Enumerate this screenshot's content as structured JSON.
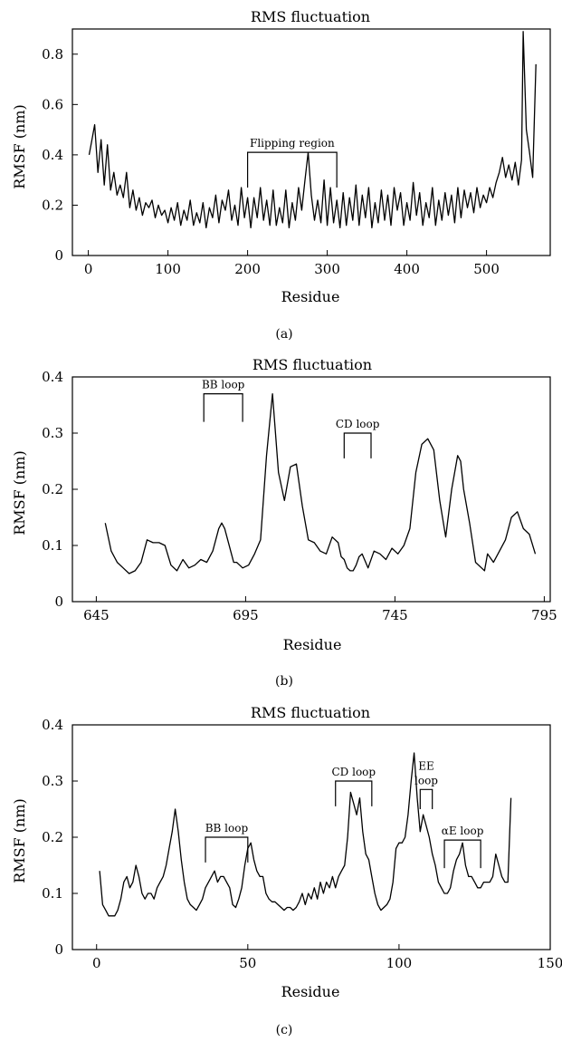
{
  "chart_data": [
    {
      "type": "line",
      "panel_label": "(a)",
      "title": "RMS fluctuation",
      "xlabel": "Residue",
      "ylabel": "RMSF (nm)",
      "xlim": [
        -20,
        580
      ],
      "ylim": [
        0,
        0.9
      ],
      "xticks": [
        0,
        100,
        200,
        300,
        400,
        500
      ],
      "xtick_labels": [
        "0",
        "100",
        "200",
        "300",
        "400",
        "500"
      ],
      "yticks": [
        0,
        0.2,
        0.4,
        0.6,
        0.8
      ],
      "ytick_labels": [
        "0",
        "0.2",
        "0.4",
        "0.6",
        "0.8"
      ],
      "grid": false,
      "annotations": [
        {
          "text": "Flipping region",
          "x_start": 200,
          "x_end": 312,
          "y_bottom": 0.27,
          "y_top": 0.41
        }
      ],
      "series": [
        {
          "x": [
            1,
            4,
            8,
            12,
            16,
            20,
            24,
            28,
            32,
            36,
            40,
            44,
            48,
            52,
            56,
            60,
            64,
            68,
            72,
            76,
            80,
            84,
            88,
            92,
            96,
            100,
            104,
            108,
            112,
            116,
            120,
            124,
            128,
            132,
            136,
            140,
            144,
            148,
            152,
            156,
            160,
            164,
            168,
            172,
            176,
            180,
            184,
            188,
            192,
            196,
            200,
            204,
            208,
            212,
            216,
            220,
            224,
            228,
            232,
            236,
            240,
            244,
            248,
            252,
            256,
            260,
            264,
            268,
            272,
            276,
            280,
            284,
            288,
            292,
            296,
            300,
            304,
            308,
            312,
            316,
            320,
            324,
            328,
            332,
            336,
            340,
            344,
            348,
            352,
            356,
            360,
            364,
            368,
            372,
            376,
            380,
            384,
            388,
            392,
            396,
            400,
            404,
            408,
            412,
            416,
            420,
            424,
            428,
            432,
            436,
            440,
            444,
            448,
            452,
            456,
            460,
            464,
            468,
            472,
            476,
            480,
            484,
            488,
            492,
            496,
            500,
            504,
            508,
            512,
            516,
            520,
            524,
            528,
            532,
            536,
            540,
            544,
            546,
            550,
            554,
            558,
            562
          ],
          "y": [
            0.4,
            0.45,
            0.52,
            0.33,
            0.46,
            0.28,
            0.44,
            0.26,
            0.33,
            0.24,
            0.28,
            0.23,
            0.33,
            0.19,
            0.26,
            0.18,
            0.23,
            0.16,
            0.21,
            0.19,
            0.22,
            0.15,
            0.2,
            0.16,
            0.18,
            0.13,
            0.19,
            0.14,
            0.21,
            0.12,
            0.18,
            0.14,
            0.22,
            0.12,
            0.17,
            0.13,
            0.21,
            0.11,
            0.19,
            0.15,
            0.24,
            0.13,
            0.22,
            0.18,
            0.26,
            0.14,
            0.2,
            0.12,
            0.27,
            0.15,
            0.23,
            0.11,
            0.23,
            0.15,
            0.27,
            0.14,
            0.22,
            0.12,
            0.26,
            0.12,
            0.19,
            0.13,
            0.26,
            0.11,
            0.21,
            0.14,
            0.27,
            0.18,
            0.3,
            0.41,
            0.24,
            0.14,
            0.22,
            0.13,
            0.3,
            0.12,
            0.27,
            0.13,
            0.22,
            0.11,
            0.25,
            0.12,
            0.23,
            0.14,
            0.28,
            0.12,
            0.24,
            0.15,
            0.27,
            0.11,
            0.21,
            0.13,
            0.26,
            0.14,
            0.24,
            0.12,
            0.27,
            0.18,
            0.25,
            0.12,
            0.21,
            0.14,
            0.29,
            0.16,
            0.25,
            0.12,
            0.21,
            0.15,
            0.27,
            0.12,
            0.22,
            0.14,
            0.25,
            0.16,
            0.24,
            0.13,
            0.27,
            0.15,
            0.26,
            0.19,
            0.25,
            0.17,
            0.27,
            0.19,
            0.24,
            0.21,
            0.27,
            0.23,
            0.29,
            0.33,
            0.39,
            0.31,
            0.36,
            0.3,
            0.37,
            0.28,
            0.38,
            0.89,
            0.5,
            0.41,
            0.31,
            0.76
          ]
        }
      ]
    },
    {
      "type": "line",
      "panel_label": "(b)",
      "title": "RMS fluctuation",
      "xlabel": "Residue",
      "ylabel": "RMSF (nm)",
      "xlim": [
        637,
        797
      ],
      "ylim": [
        0,
        0.4
      ],
      "xticks": [
        645,
        695,
        745,
        795
      ],
      "xtick_labels": [
        "645",
        "695",
        "745",
        "795"
      ],
      "yticks": [
        0,
        0.1,
        0.2,
        0.3,
        0.4
      ],
      "ytick_labels": [
        "0",
        "0.1",
        "0.2",
        "0.3",
        "0.4"
      ],
      "grid": false,
      "annotations": [
        {
          "text": "BB loop",
          "x_start": 681,
          "x_end": 694,
          "y_bottom": 0.32,
          "y_top": 0.37
        },
        {
          "text": "CD loop",
          "x_start": 728,
          "x_end": 737,
          "y_bottom": 0.255,
          "y_top": 0.3
        }
      ],
      "series": [
        {
          "x": [
            648,
            650,
            652,
            654,
            656,
            658,
            660,
            662,
            664,
            666,
            668,
            670,
            672,
            674,
            676,
            678,
            680,
            682,
            684,
            686,
            687,
            688,
            690,
            691,
            692,
            693,
            694,
            696,
            698,
            700,
            702,
            704,
            706,
            708,
            710,
            712,
            714,
            716,
            718,
            720,
            722,
            724,
            726,
            727,
            728,
            729,
            730,
            731,
            732,
            733,
            734,
            736,
            738,
            740,
            742,
            744,
            746,
            748,
            750,
            752,
            754,
            756,
            758,
            760,
            762,
            764,
            766,
            767,
            768,
            770,
            772,
            774,
            775,
            776,
            778,
            780,
            782,
            784,
            786,
            788,
            790,
            792
          ],
          "y": [
            0.14,
            0.09,
            0.07,
            0.06,
            0.05,
            0.055,
            0.07,
            0.11,
            0.105,
            0.105,
            0.1,
            0.065,
            0.055,
            0.075,
            0.06,
            0.065,
            0.075,
            0.07,
            0.09,
            0.13,
            0.14,
            0.13,
            0.09,
            0.07,
            0.07,
            0.065,
            0.06,
            0.065,
            0.085,
            0.11,
            0.26,
            0.37,
            0.23,
            0.18,
            0.24,
            0.245,
            0.17,
            0.11,
            0.105,
            0.09,
            0.085,
            0.115,
            0.105,
            0.08,
            0.075,
            0.06,
            0.055,
            0.055,
            0.065,
            0.08,
            0.085,
            0.06,
            0.09,
            0.085,
            0.075,
            0.095,
            0.085,
            0.1,
            0.13,
            0.23,
            0.28,
            0.29,
            0.27,
            0.18,
            0.115,
            0.2,
            0.26,
            0.25,
            0.2,
            0.14,
            0.07,
            0.06,
            0.055,
            0.085,
            0.07,
            0.09,
            0.11,
            0.15,
            0.16,
            0.13,
            0.12,
            0.085
          ]
        }
      ]
    },
    {
      "type": "line",
      "panel_label": "(c)",
      "title": "RMS fluctuation",
      "xlabel": "Residue",
      "ylabel": "RMSF (nm)",
      "xlim": [
        -8,
        150
      ],
      "ylim": [
        0,
        0.4
      ],
      "xticks": [
        0,
        50,
        100,
        150
      ],
      "xtick_labels": [
        "0",
        "50",
        "100",
        "150"
      ],
      "yticks": [
        0,
        0.1,
        0.2,
        0.3,
        0.4
      ],
      "ytick_labels": [
        "0",
        "0.1",
        "0.2",
        "0.3",
        "0.4"
      ],
      "grid": false,
      "annotations": [
        {
          "text": "BB loop",
          "x_start": 36,
          "x_end": 50,
          "y_bottom": 0.155,
          "y_top": 0.2
        },
        {
          "text": "CD loop",
          "x_start": 79,
          "x_end": 91,
          "y_bottom": 0.255,
          "y_top": 0.3
        },
        {
          "text": "EE loop",
          "x_start": 107,
          "x_end": 111,
          "y_bottom": 0.25,
          "y_top": 0.285
        },
        {
          "text": "αE loop",
          "x_start": 115,
          "x_end": 127,
          "y_bottom": 0.145,
          "y_top": 0.195
        }
      ],
      "series": [
        {
          "x": [
            1,
            2,
            3,
            4,
            5,
            6,
            7,
            8,
            9,
            10,
            11,
            12,
            13,
            14,
            15,
            16,
            17,
            18,
            19,
            20,
            21,
            22,
            23,
            24,
            25,
            26,
            27,
            28,
            29,
            30,
            31,
            32,
            33,
            34,
            35,
            36,
            37,
            38,
            39,
            40,
            41,
            42,
            43,
            44,
            45,
            46,
            47,
            48,
            49,
            50,
            51,
            52,
            53,
            54,
            55,
            56,
            57,
            58,
            59,
            60,
            61,
            62,
            63,
            64,
            65,
            66,
            67,
            68,
            69,
            70,
            71,
            72,
            73,
            74,
            75,
            76,
            77,
            78,
            79,
            80,
            81,
            82,
            83,
            84,
            85,
            86,
            87,
            88,
            89,
            90,
            91,
            92,
            93,
            94,
            95,
            96,
            97,
            98,
            99,
            100,
            101,
            102,
            103,
            104,
            105,
            106,
            107,
            108,
            109,
            110,
            111,
            112,
            113,
            114,
            115,
            116,
            117,
            118,
            119,
            120,
            121,
            122,
            123,
            124,
            125,
            126,
            127,
            128,
            129,
            130,
            131,
            132,
            133,
            134,
            135,
            136,
            137
          ],
          "y": [
            0.14,
            0.08,
            0.07,
            0.06,
            0.06,
            0.06,
            0.07,
            0.09,
            0.12,
            0.13,
            0.11,
            0.12,
            0.15,
            0.13,
            0.1,
            0.09,
            0.1,
            0.1,
            0.09,
            0.11,
            0.12,
            0.13,
            0.15,
            0.18,
            0.21,
            0.25,
            0.21,
            0.16,
            0.12,
            0.09,
            0.08,
            0.075,
            0.07,
            0.08,
            0.09,
            0.11,
            0.12,
            0.13,
            0.14,
            0.12,
            0.13,
            0.13,
            0.12,
            0.11,
            0.08,
            0.075,
            0.09,
            0.11,
            0.15,
            0.18,
            0.19,
            0.16,
            0.14,
            0.13,
            0.13,
            0.1,
            0.09,
            0.085,
            0.085,
            0.08,
            0.075,
            0.07,
            0.075,
            0.075,
            0.07,
            0.075,
            0.085,
            0.1,
            0.08,
            0.1,
            0.09,
            0.11,
            0.09,
            0.12,
            0.1,
            0.12,
            0.11,
            0.13,
            0.11,
            0.13,
            0.14,
            0.15,
            0.2,
            0.28,
            0.26,
            0.24,
            0.27,
            0.21,
            0.17,
            0.16,
            0.13,
            0.1,
            0.08,
            0.07,
            0.075,
            0.08,
            0.09,
            0.12,
            0.18,
            0.19,
            0.19,
            0.2,
            0.24,
            0.3,
            0.35,
            0.27,
            0.21,
            0.24,
            0.22,
            0.2,
            0.17,
            0.15,
            0.12,
            0.11,
            0.1,
            0.1,
            0.11,
            0.14,
            0.16,
            0.17,
            0.19,
            0.15,
            0.13,
            0.13,
            0.12,
            0.11,
            0.11,
            0.12,
            0.12,
            0.12,
            0.13,
            0.17,
            0.15,
            0.13,
            0.12,
            0.12,
            0.27
          ]
        }
      ]
    }
  ]
}
